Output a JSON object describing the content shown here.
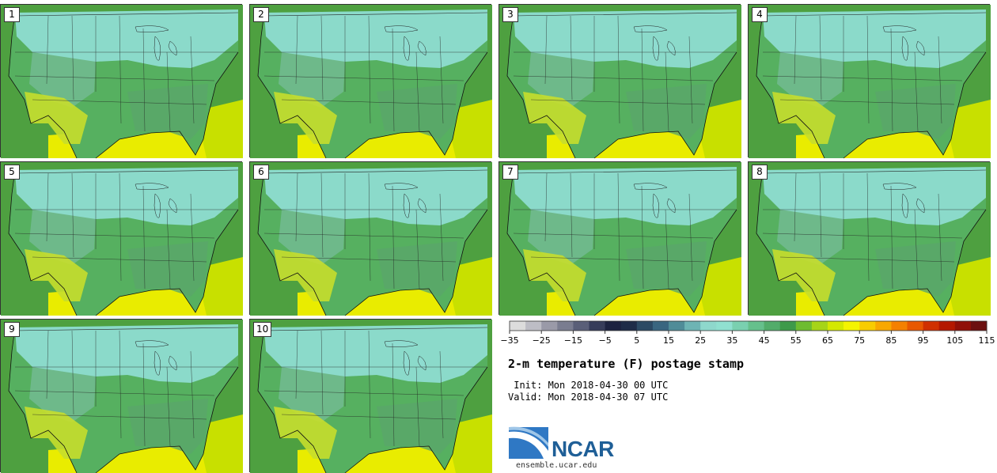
{
  "title": "2-m temperature (F) postage stamp",
  "init": " Init: Mon 2018-04-30 00 UTC",
  "valid": "Valid: Mon 2018-04-30 07 UTC",
  "logo_text": "NCAR",
  "site": "ensemble.ucar.edu",
  "members": [
    "1",
    "2",
    "3",
    "4",
    "5",
    "6",
    "7",
    "8",
    "9",
    "10"
  ],
  "colorbar": {
    "ticks": [
      "−35",
      "−25",
      "−15",
      "−5",
      "5",
      "15",
      "25",
      "35",
      "45",
      "55",
      "65",
      "75",
      "85",
      "95",
      "105",
      "115"
    ],
    "colors": [
      "#dcdcdc",
      "#bdbdc5",
      "#9a9aa8",
      "#7a7d90",
      "#5a5f78",
      "#363c5a",
      "#1c2240",
      "#1e2c48",
      "#2c4a64",
      "#3a6680",
      "#508c98",
      "#6eb4b4",
      "#8ed8cc",
      "#90e0d0",
      "#7ad0b0",
      "#66c08c",
      "#52ac6a",
      "#3e9a4a",
      "#6ebc30",
      "#a6d418",
      "#d4e800",
      "#f4f400",
      "#f8cc00",
      "#f8a800",
      "#f48000",
      "#e85800",
      "#d03000",
      "#b41800",
      "#901008",
      "#6c1010"
    ]
  },
  "map_colors": {
    "gulf": "#e9ec00",
    "atlantic": "#c8e000",
    "pacific": "#4ea040",
    "plains": "#56b060",
    "north": "#8edcd0",
    "rockies": "#6eb98a",
    "southwest": "#c6de2c",
    "southeast": "#5aa66a"
  }
}
